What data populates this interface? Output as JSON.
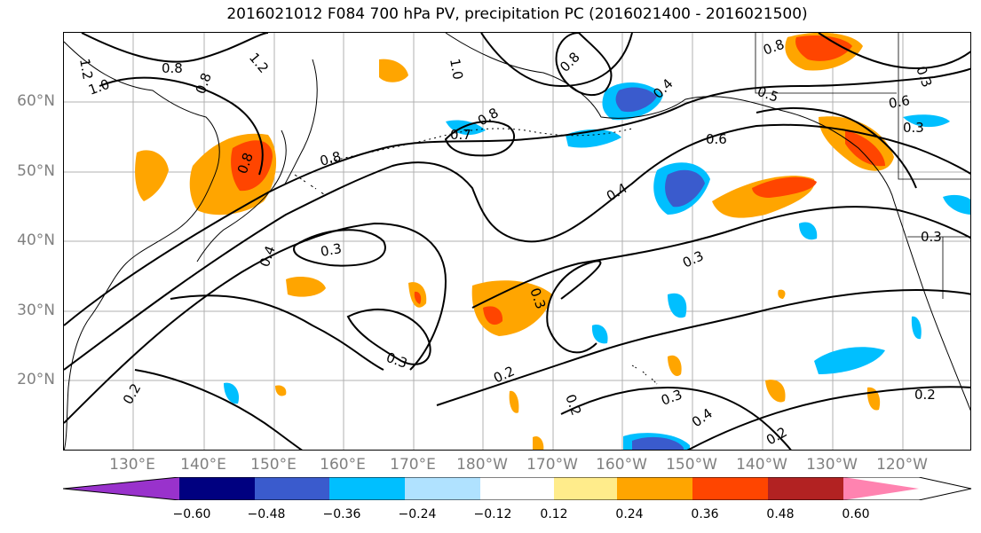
{
  "title": "2016021012 F084 700 hPa PV, precipitation PC (2016021400 - 2016021500)",
  "lat_labels": [
    "60°N",
    "50°N",
    "40°N",
    "30°N",
    "20°N"
  ],
  "lon_labels": [
    "130°E",
    "140°E",
    "150°E",
    "160°E",
    "170°E",
    "180°W",
    "170°W",
    "160°W",
    "150°W",
    "140°W",
    "130°W",
    "120°W"
  ],
  "colorbar": {
    "ticks": [
      "−0.60",
      "−0.48",
      "−0.36",
      "−0.24",
      "−0.12",
      "0.12",
      "0.24",
      "0.36",
      "0.48",
      "0.60"
    ],
    "colors": [
      "#9932cc",
      "#000080",
      "#3a5bcd",
      "#00bfff",
      "#b0e2ff",
      "#ffffff",
      "#ffec8b",
      "#ffa500",
      "#ff4500",
      "#b22222",
      "#ff83b0"
    ]
  },
  "contour_labels": [
    "1.2",
    "0.8",
    "1.0",
    "0.8",
    "1.2",
    "1.0",
    "0.8",
    "0.8",
    "0.8",
    "0.7",
    "0.8",
    "0.4",
    "0.6",
    "0.8",
    "0.5",
    "0.6",
    "0.3",
    "0.4",
    "0.3",
    "0.4",
    "0.3",
    "0.3",
    "0.3",
    "0.3",
    "0.2",
    "0.2",
    "0.2",
    "0.3",
    "0.4",
    "0.2",
    "0.2",
    "0.3"
  ],
  "colors": {
    "axis_label": "#808080",
    "contour": "#000000",
    "coast": "#000000",
    "grid": "#b0b0b0"
  }
}
